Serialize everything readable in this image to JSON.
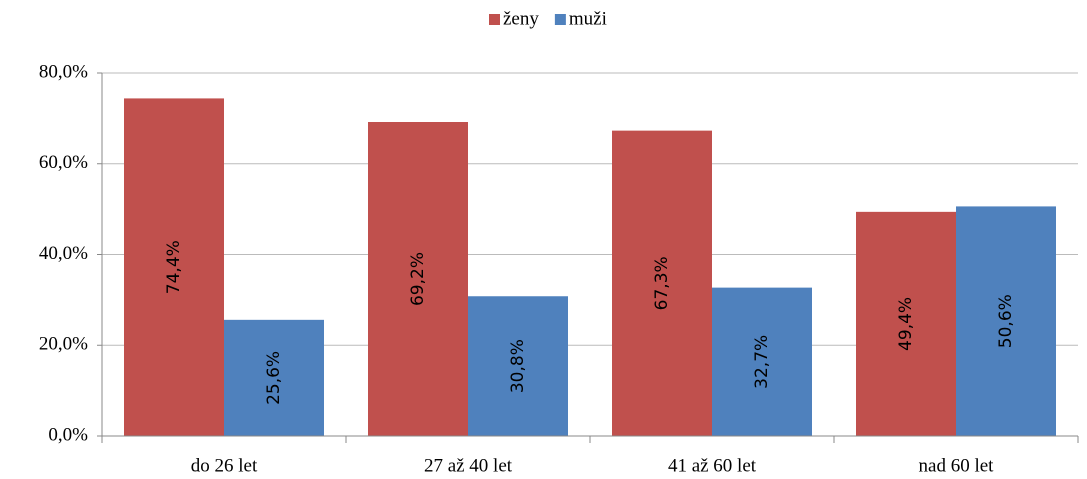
{
  "chart_data": {
    "type": "bar",
    "categories": [
      "do 26 let",
      "27 až 40 let",
      "41 až 60 let",
      "nad 60 let"
    ],
    "series": [
      {
        "name": "ženy",
        "color": "#c0504d",
        "values": [
          74.4,
          69.2,
          67.3,
          49.4
        ],
        "value_labels": [
          "74,4%",
          "69,2%",
          "67,3%",
          "49,4%"
        ]
      },
      {
        "name": "muži",
        "color": "#4f81bd",
        "values": [
          25.6,
          30.8,
          32.7,
          50.6
        ],
        "value_labels": [
          "25,6%",
          "30,8%",
          "32,7%",
          "50,6%"
        ]
      }
    ],
    "ylim": [
      0,
      80
    ],
    "yticks": [
      {
        "value": 0,
        "label": "0,0%"
      },
      {
        "value": 20,
        "label": "20,0%"
      },
      {
        "value": 40,
        "label": "40,0%"
      },
      {
        "value": 60,
        "label": "60,0%"
      },
      {
        "value": 80,
        "label": "80,0%"
      }
    ],
    "grid": true,
    "legend": "top"
  }
}
